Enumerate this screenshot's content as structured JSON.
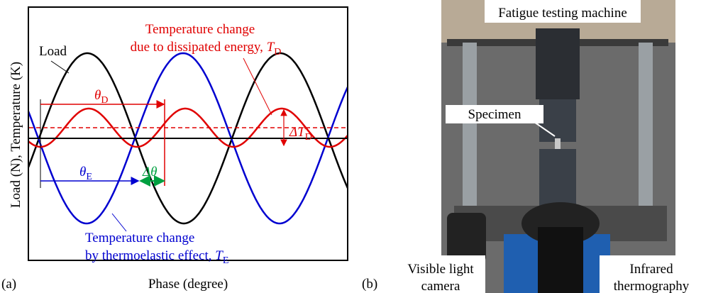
{
  "panel_a": {
    "label": "(a)",
    "x_axis_label": "Phase (degree)",
    "y_axis_label": "Load (N), Temperature (K)",
    "load_label": "Load",
    "dissipated": {
      "line1": "Temperature change",
      "line2": "due to dissipated energy, ",
      "symbol": "T",
      "sub": "D"
    },
    "thermoelastic": {
      "line1": "Temperature change",
      "line2": "by thermoelastic effect, ",
      "symbol": "T",
      "sub": "E"
    },
    "theta_d": {
      "symbol": "θ",
      "sub": "D"
    },
    "theta_e": {
      "symbol": "θ",
      "sub": "E"
    },
    "delta_theta": "Δθ",
    "delta_td": {
      "symbol": "ΔT",
      "sub": "D"
    }
  },
  "panel_b": {
    "label": "(b)",
    "machine": "Fatigue testing machine",
    "specimen": "Specimen",
    "camera": [
      "Visible light",
      "camera"
    ],
    "thermography": [
      "Infrared",
      "thermography"
    ]
  }
}
